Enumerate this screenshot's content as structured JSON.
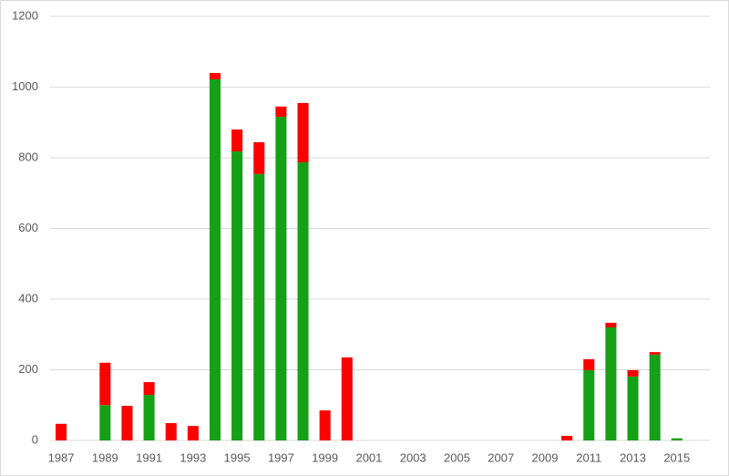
{
  "chart_data": {
    "type": "stacked_bar",
    "categories": [
      "1987",
      null,
      "1989",
      null,
      "1991",
      null,
      "1993",
      null,
      "1995",
      null,
      "1997",
      null,
      "1999",
      null,
      "2001",
      null,
      "2003",
      null,
      "2005",
      null,
      "2007",
      null,
      "2009",
      null,
      "2011",
      null,
      "2013",
      null,
      "2015",
      null
    ],
    "series": [
      {
        "color": "#15a015",
        "values": [
          0,
          0,
          100,
          0,
          129,
          0,
          0,
          1022,
          818,
          754,
          916,
          787,
          0,
          0,
          0,
          0,
          0,
          0,
          0,
          0,
          0,
          0,
          0,
          0,
          199,
          320,
          181,
          243,
          6,
          0
        ]
      },
      {
        "color": "#ff0000",
        "values": [
          47,
          0,
          120,
          98,
          36,
          49,
          41,
          18,
          62,
          90,
          29,
          168,
          85,
          235,
          0,
          0,
          0,
          0,
          0,
          0,
          0,
          0,
          0,
          13,
          31,
          13,
          18,
          7,
          0,
          0
        ]
      }
    ],
    "ylim": [
      0,
      1200
    ],
    "yticks": [
      0,
      200,
      400,
      600,
      800,
      1000,
      1200
    ],
    "grid": true
  }
}
